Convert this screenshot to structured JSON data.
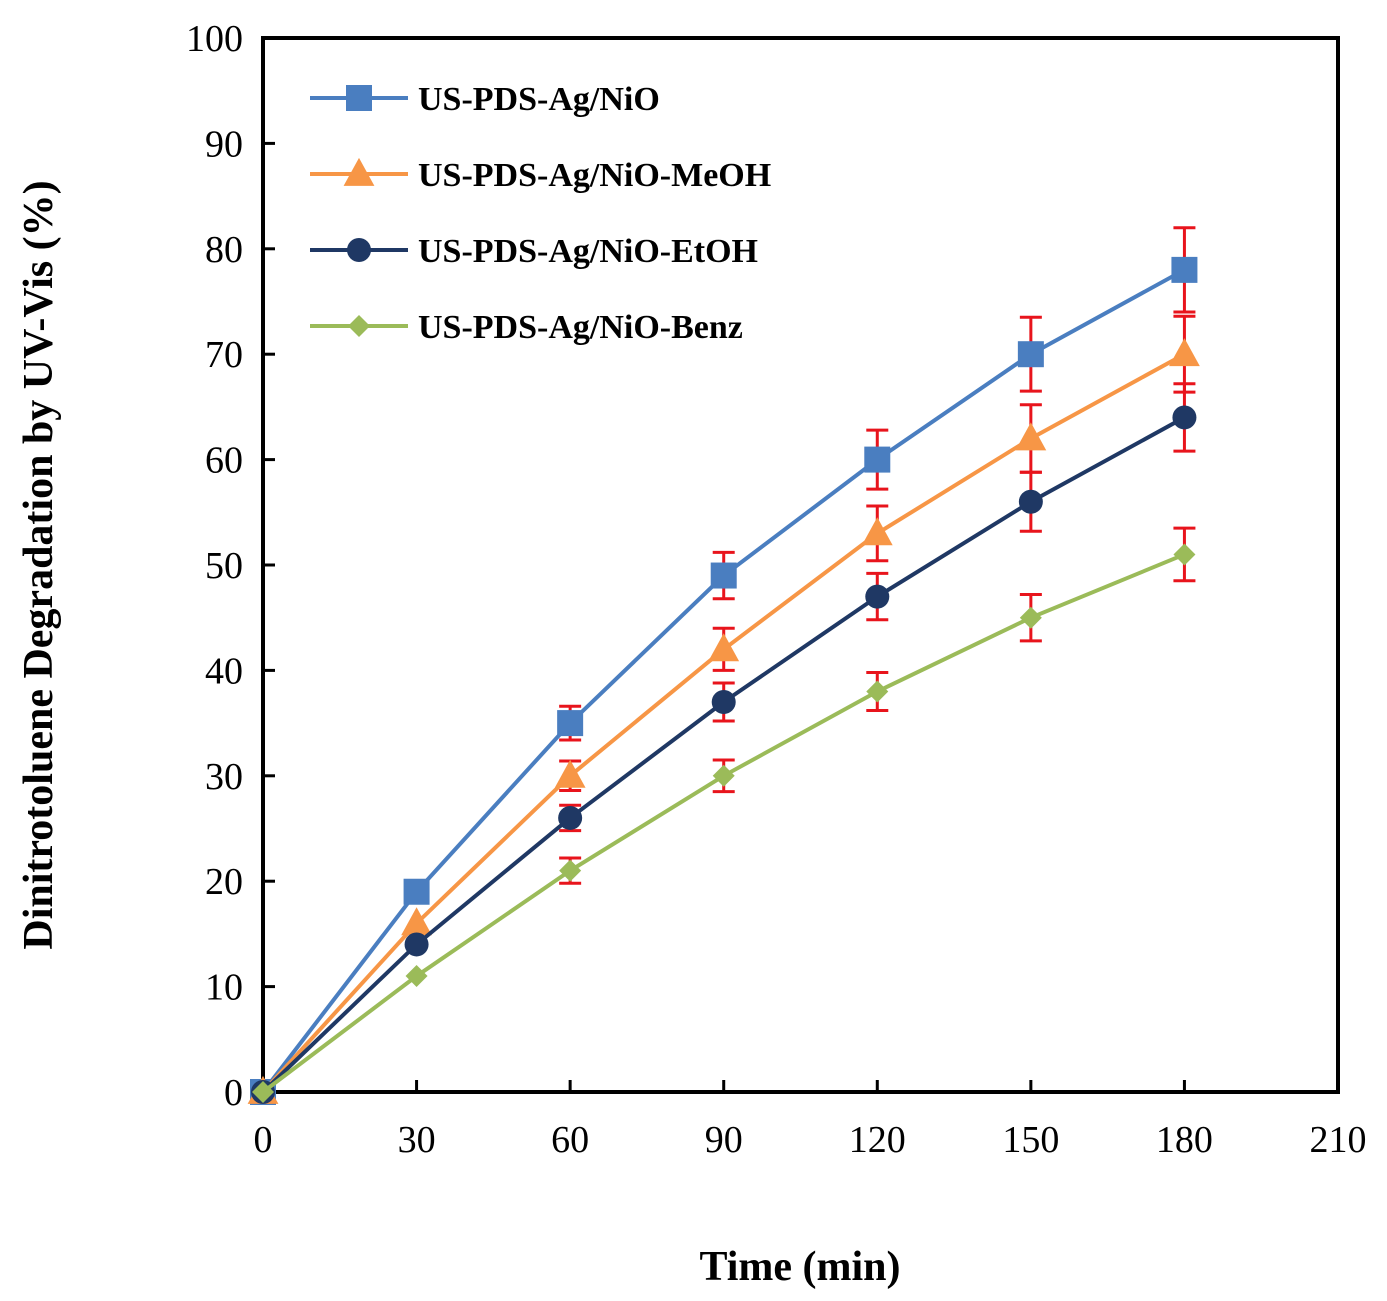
{
  "chart_data": {
    "type": "line",
    "title": "",
    "xlabel": "Time (min)",
    "ylabel": "Dinitrotoluene Degradation by UV-Vis (%)",
    "xlim": [
      0,
      210
    ],
    "ylim": [
      0,
      100
    ],
    "xticks": [
      0,
      30,
      60,
      90,
      120,
      150,
      180,
      210
    ],
    "yticks": [
      0,
      10,
      20,
      30,
      40,
      50,
      60,
      70,
      80,
      90,
      100
    ],
    "x": [
      0,
      30,
      60,
      90,
      120,
      150,
      180
    ],
    "grid": false,
    "legend_position": "top-left",
    "error_bar_color": "#e8141c",
    "series": [
      {
        "name": "US-PDS-Ag/NiO",
        "marker": "square",
        "color": "#4a7ec0",
        "values": [
          0,
          19,
          35,
          49,
          60,
          70,
          78
        ],
        "errors": [
          0,
          0,
          1.6,
          2.2,
          2.8,
          3.5,
          4
        ]
      },
      {
        "name": "US-PDS-Ag/NiO-MeOH",
        "marker": "triangle",
        "color": "#f79646",
        "values": [
          0,
          16,
          30,
          42,
          53,
          62,
          70
        ],
        "errors": [
          0,
          0,
          1.4,
          2,
          2.6,
          3.2,
          3.6
        ]
      },
      {
        "name": "US-PDS-Ag/NiO-EtOH",
        "marker": "circle",
        "color": "#1f3864",
        "values": [
          0,
          14,
          26,
          37,
          47,
          56,
          64
        ],
        "errors": [
          0,
          0,
          1.2,
          1.8,
          2.2,
          2.8,
          3.2
        ]
      },
      {
        "name": "US-PDS-Ag/NiO-Benz",
        "marker": "diamond",
        "color": "#9bbb59",
        "values": [
          0,
          11,
          21,
          30,
          38,
          45,
          51
        ],
        "errors": [
          0,
          0,
          1.2,
          1.5,
          1.8,
          2.2,
          2.5
        ]
      }
    ]
  }
}
